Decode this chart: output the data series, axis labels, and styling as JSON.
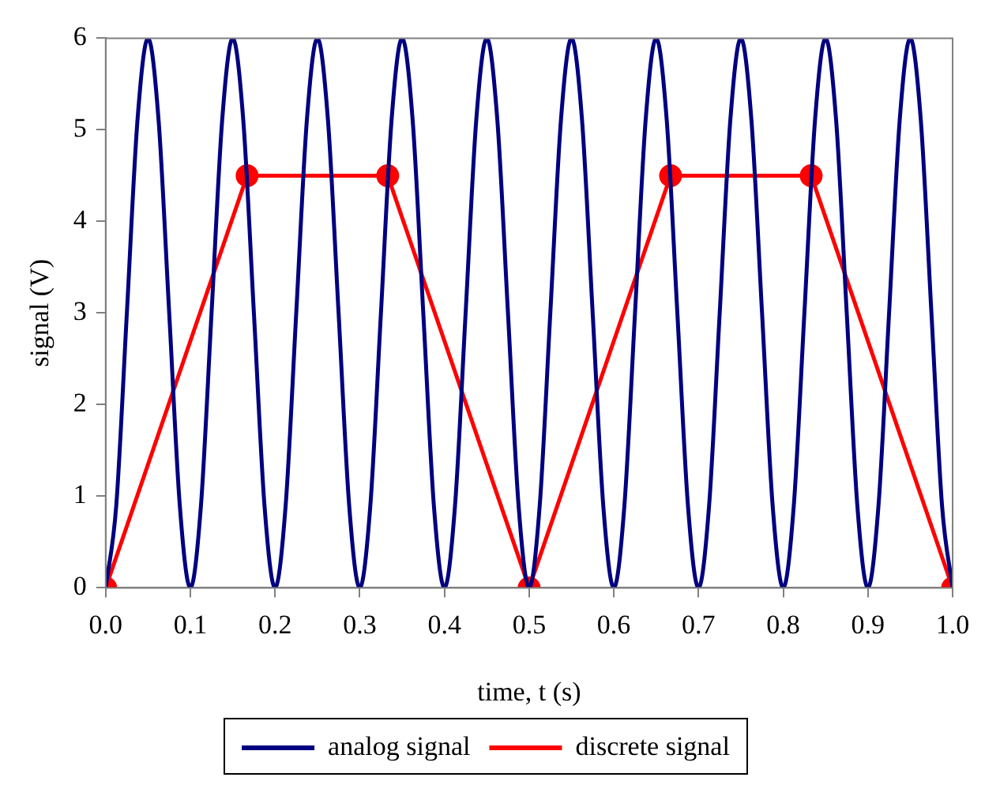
{
  "chart_data": {
    "type": "line",
    "xlabel": "time, t (s)",
    "ylabel": "signal (V)",
    "xlim": [
      0,
      1
    ],
    "ylim": [
      0,
      6
    ],
    "xticks": [
      {
        "value": 0,
        "label": "0.0"
      },
      {
        "value": 0.1,
        "label": "0.1"
      },
      {
        "value": 0.2,
        "label": "0.2"
      },
      {
        "value": 0.3,
        "label": "0.3"
      },
      {
        "value": 0.4,
        "label": "0.4"
      },
      {
        "value": 0.5,
        "label": "0.5"
      },
      {
        "value": 0.6,
        "label": "0.6"
      },
      {
        "value": 0.7,
        "label": "0.7"
      },
      {
        "value": 0.8,
        "label": "0.8"
      },
      {
        "value": 0.9,
        "label": "0.9"
      },
      {
        "value": 1,
        "label": "1.0"
      }
    ],
    "yticks": [
      0,
      1,
      2,
      3,
      4,
      5,
      6
    ],
    "grid": false,
    "legend": "bottom",
    "series": [
      {
        "name": "analog signal",
        "color": "#000080",
        "marker": "none",
        "x": [
          0,
          0.0125,
          0.025,
          0.0375,
          0.05,
          0.0625,
          0.075,
          0.0875,
          0.1,
          0.1125,
          0.125,
          0.1375,
          0.15,
          0.1625,
          0.175,
          0.1875,
          0.2,
          0.2125,
          0.225,
          0.2375,
          0.25,
          0.2625,
          0.275,
          0.2875,
          0.3,
          0.3125,
          0.325,
          0.3375,
          0.35,
          0.3625,
          0.375,
          0.3875,
          0.4,
          0.4125,
          0.425,
          0.4375,
          0.45,
          0.4625,
          0.475,
          0.4875,
          0.5,
          0.5125,
          0.525,
          0.5375,
          0.55,
          0.5625,
          0.575,
          0.5875,
          0.6,
          0.6125,
          0.625,
          0.6375,
          0.65,
          0.6625,
          0.675,
          0.6875,
          0.7,
          0.7125,
          0.725,
          0.7375,
          0.75,
          0.7625,
          0.775,
          0.7875,
          0.8,
          0.8125,
          0.825,
          0.8375,
          0.85,
          0.8625,
          0.875,
          0.8875,
          0.9,
          0.9125,
          0.925,
          0.9375,
          0.95,
          0.9625,
          0.975,
          0.9875,
          1.0
        ],
        "values": [
          0,
          0.9,
          3,
          5.1,
          6,
          5.1,
          3,
          0.9,
          0,
          0.9,
          3,
          5.1,
          6,
          5.1,
          3,
          0.9,
          0,
          0.9,
          3,
          5.1,
          6,
          5.1,
          3,
          0.9,
          0,
          0.9,
          3,
          5.1,
          6,
          5.1,
          3,
          0.9,
          0,
          0.9,
          3,
          5.1,
          6,
          5.1,
          3,
          0.9,
          0,
          0.9,
          3,
          5.1,
          6,
          5.1,
          3,
          0.9,
          0,
          0.9,
          3,
          5.1,
          6,
          5.1,
          3,
          0.9,
          0,
          0.9,
          3,
          5.1,
          6,
          5.1,
          3,
          0.9,
          0,
          0.9,
          3,
          5.1,
          6,
          5.1,
          3,
          0.9,
          0,
          0.9,
          3,
          5.1,
          6,
          5.1,
          3,
          0.9,
          0
        ]
      },
      {
        "name": "discrete signal",
        "color": "#ff0000",
        "marker": "circle",
        "x": [
          0,
          0.167,
          0.333,
          0.5,
          0.667,
          0.833,
          1.0
        ],
        "values": [
          0,
          4.5,
          4.5,
          0,
          4.5,
          4.5,
          0
        ]
      }
    ]
  }
}
